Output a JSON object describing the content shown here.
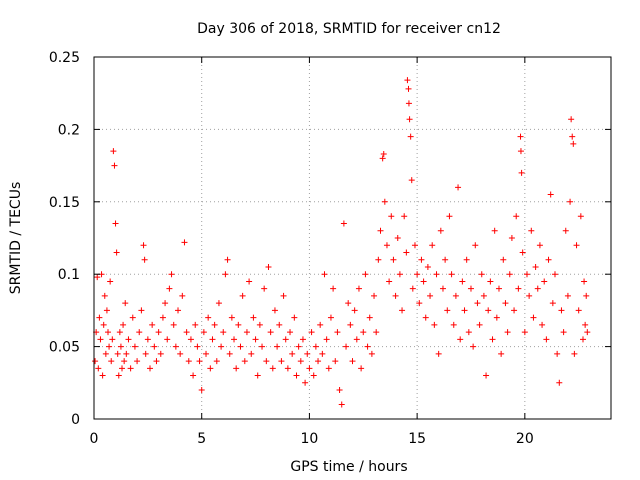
{
  "chart_data": {
    "type": "scatter",
    "title": "Day 306 of 2018, SRMTID for receiver cn12",
    "xlabel": "GPS time / hours",
    "ylabel": "SRMTID / TECUs",
    "xlim": [
      0,
      24
    ],
    "ylim": [
      0,
      0.25
    ],
    "xticks": [
      0,
      5,
      10,
      15,
      20
    ],
    "xtick_labels": [
      "0",
      "5",
      "10",
      "15",
      "20"
    ],
    "yticks": [
      0,
      0.05,
      0.1,
      0.15,
      0.2,
      0.25
    ],
    "ytick_labels": [
      "0",
      "0.05",
      "0.1",
      "0.15",
      "0.2",
      "0.25"
    ],
    "grid": true,
    "marker": "+",
    "series": [
      {
        "name": "SRMTID",
        "color": "#ff0000",
        "points": [
          [
            0.05,
            0.04
          ],
          [
            0.1,
            0.06
          ],
          [
            0.15,
            0.098
          ],
          [
            0.2,
            0.035
          ],
          [
            0.25,
            0.07
          ],
          [
            0.3,
            0.055
          ],
          [
            0.35,
            0.1
          ],
          [
            0.4,
            0.03
          ],
          [
            0.45,
            0.065
          ],
          [
            0.5,
            0.085
          ],
          [
            0.55,
            0.045
          ],
          [
            0.6,
            0.075
          ],
          [
            0.65,
            0.06
          ],
          [
            0.7,
            0.05
          ],
          [
            0.75,
            0.095
          ],
          [
            0.8,
            0.04
          ],
          [
            0.85,
            0.055
          ],
          [
            0.9,
            0.185
          ],
          [
            0.95,
            0.175
          ],
          [
            1.0,
            0.135
          ],
          [
            1.05,
            0.115
          ],
          [
            1.1,
            0.045
          ],
          [
            1.15,
            0.03
          ],
          [
            1.2,
            0.06
          ],
          [
            1.25,
            0.05
          ],
          [
            1.3,
            0.035
          ],
          [
            1.35,
            0.065
          ],
          [
            1.4,
            0.04
          ],
          [
            1.45,
            0.08
          ],
          [
            1.5,
            0.045
          ],
          [
            1.6,
            0.055
          ],
          [
            1.7,
            0.035
          ],
          [
            1.8,
            0.07
          ],
          [
            1.9,
            0.05
          ],
          [
            2.0,
            0.04
          ],
          [
            2.1,
            0.06
          ],
          [
            2.2,
            0.075
          ],
          [
            2.3,
            0.12
          ],
          [
            2.35,
            0.11
          ],
          [
            2.4,
            0.045
          ],
          [
            2.5,
            0.055
          ],
          [
            2.6,
            0.035
          ],
          [
            2.7,
            0.065
          ],
          [
            2.8,
            0.05
          ],
          [
            2.9,
            0.04
          ],
          [
            3.0,
            0.06
          ],
          [
            3.1,
            0.045
          ],
          [
            3.2,
            0.07
          ],
          [
            3.3,
            0.08
          ],
          [
            3.4,
            0.055
          ],
          [
            3.5,
            0.09
          ],
          [
            3.6,
            0.1
          ],
          [
            3.7,
            0.065
          ],
          [
            3.8,
            0.05
          ],
          [
            3.9,
            0.075
          ],
          [
            4.0,
            0.045
          ],
          [
            4.1,
            0.085
          ],
          [
            4.2,
            0.122
          ],
          [
            4.3,
            0.06
          ],
          [
            4.4,
            0.04
          ],
          [
            4.5,
            0.055
          ],
          [
            4.6,
            0.03
          ],
          [
            4.7,
            0.065
          ],
          [
            4.8,
            0.05
          ],
          [
            4.9,
            0.04
          ],
          [
            5.0,
            0.02
          ],
          [
            5.1,
            0.06
          ],
          [
            5.2,
            0.045
          ],
          [
            5.3,
            0.07
          ],
          [
            5.4,
            0.035
          ],
          [
            5.5,
            0.055
          ],
          [
            5.6,
            0.065
          ],
          [
            5.7,
            0.04
          ],
          [
            5.8,
            0.08
          ],
          [
            5.9,
            0.05
          ],
          [
            6.0,
            0.06
          ],
          [
            6.1,
            0.1
          ],
          [
            6.2,
            0.11
          ],
          [
            6.3,
            0.045
          ],
          [
            6.4,
            0.07
          ],
          [
            6.5,
            0.055
          ],
          [
            6.6,
            0.035
          ],
          [
            6.7,
            0.065
          ],
          [
            6.8,
            0.05
          ],
          [
            6.9,
            0.085
          ],
          [
            7.0,
            0.04
          ],
          [
            7.1,
            0.06
          ],
          [
            7.2,
            0.095
          ],
          [
            7.3,
            0.045
          ],
          [
            7.4,
            0.07
          ],
          [
            7.5,
            0.055
          ],
          [
            7.6,
            0.03
          ],
          [
            7.7,
            0.065
          ],
          [
            7.8,
            0.05
          ],
          [
            7.9,
            0.09
          ],
          [
            8.0,
            0.04
          ],
          [
            8.1,
            0.105
          ],
          [
            8.2,
            0.06
          ],
          [
            8.3,
            0.035
          ],
          [
            8.4,
            0.075
          ],
          [
            8.5,
            0.05
          ],
          [
            8.6,
            0.065
          ],
          [
            8.7,
            0.04
          ],
          [
            8.8,
            0.085
          ],
          [
            8.9,
            0.055
          ],
          [
            9.0,
            0.035
          ],
          [
            9.1,
            0.06
          ],
          [
            9.2,
            0.045
          ],
          [
            9.3,
            0.07
          ],
          [
            9.4,
            0.03
          ],
          [
            9.5,
            0.05
          ],
          [
            9.6,
            0.04
          ],
          [
            9.7,
            0.055
          ],
          [
            9.8,
            0.025
          ],
          [
            9.9,
            0.045
          ],
          [
            10.0,
            0.035
          ],
          [
            10.1,
            0.06
          ],
          [
            10.2,
            0.03
          ],
          [
            10.3,
            0.05
          ],
          [
            10.4,
            0.04
          ],
          [
            10.5,
            0.065
          ],
          [
            10.6,
            0.045
          ],
          [
            10.7,
            0.1
          ],
          [
            10.8,
            0.055
          ],
          [
            10.9,
            0.035
          ],
          [
            11.0,
            0.07
          ],
          [
            11.1,
            0.09
          ],
          [
            11.2,
            0.04
          ],
          [
            11.3,
            0.06
          ],
          [
            11.4,
            0.02
          ],
          [
            11.5,
            0.01
          ],
          [
            11.6,
            0.135
          ],
          [
            11.7,
            0.05
          ],
          [
            11.8,
            0.08
          ],
          [
            11.9,
            0.065
          ],
          [
            12.0,
            0.04
          ],
          [
            12.1,
            0.075
          ],
          [
            12.2,
            0.055
          ],
          [
            12.3,
            0.09
          ],
          [
            12.4,
            0.035
          ],
          [
            12.5,
            0.06
          ],
          [
            12.6,
            0.1
          ],
          [
            12.7,
            0.05
          ],
          [
            12.8,
            0.07
          ],
          [
            12.9,
            0.045
          ],
          [
            13.0,
            0.085
          ],
          [
            13.1,
            0.06
          ],
          [
            13.2,
            0.11
          ],
          [
            13.3,
            0.13
          ],
          [
            13.4,
            0.18
          ],
          [
            13.45,
            0.183
          ],
          [
            13.5,
            0.15
          ],
          [
            13.6,
            0.12
          ],
          [
            13.7,
            0.095
          ],
          [
            13.8,
            0.14
          ],
          [
            13.9,
            0.11
          ],
          [
            14.0,
            0.085
          ],
          [
            14.1,
            0.125
          ],
          [
            14.2,
            0.1
          ],
          [
            14.3,
            0.075
          ],
          [
            14.4,
            0.14
          ],
          [
            14.5,
            0.115
          ],
          [
            14.55,
            0.234
          ],
          [
            14.6,
            0.228
          ],
          [
            14.62,
            0.218
          ],
          [
            14.65,
            0.207
          ],
          [
            14.7,
            0.195
          ],
          [
            14.75,
            0.165
          ],
          [
            14.8,
            0.09
          ],
          [
            14.9,
            0.12
          ],
          [
            15.0,
            0.1
          ],
          [
            15.1,
            0.08
          ],
          [
            15.2,
            0.11
          ],
          [
            15.3,
            0.095
          ],
          [
            15.4,
            0.07
          ],
          [
            15.5,
            0.105
          ],
          [
            15.6,
            0.085
          ],
          [
            15.7,
            0.12
          ],
          [
            15.8,
            0.065
          ],
          [
            15.9,
            0.1
          ],
          [
            16.0,
            0.045
          ],
          [
            16.1,
            0.13
          ],
          [
            16.2,
            0.09
          ],
          [
            16.3,
            0.11
          ],
          [
            16.4,
            0.075
          ],
          [
            16.5,
            0.14
          ],
          [
            16.6,
            0.1
          ],
          [
            16.7,
            0.065
          ],
          [
            16.8,
            0.085
          ],
          [
            16.9,
            0.16
          ],
          [
            17.0,
            0.055
          ],
          [
            17.1,
            0.095
          ],
          [
            17.2,
            0.075
          ],
          [
            17.3,
            0.11
          ],
          [
            17.4,
            0.06
          ],
          [
            17.5,
            0.09
          ],
          [
            17.6,
            0.05
          ],
          [
            17.7,
            0.12
          ],
          [
            17.8,
            0.08
          ],
          [
            17.9,
            0.065
          ],
          [
            18.0,
            0.1
          ],
          [
            18.1,
            0.085
          ],
          [
            18.2,
            0.03
          ],
          [
            18.3,
            0.075
          ],
          [
            18.4,
            0.095
          ],
          [
            18.5,
            0.055
          ],
          [
            18.6,
            0.13
          ],
          [
            18.7,
            0.07
          ],
          [
            18.8,
            0.09
          ],
          [
            18.9,
            0.045
          ],
          [
            19.0,
            0.11
          ],
          [
            19.1,
            0.08
          ],
          [
            19.2,
            0.06
          ],
          [
            19.3,
            0.1
          ],
          [
            19.4,
            0.125
          ],
          [
            19.5,
            0.075
          ],
          [
            19.6,
            0.14
          ],
          [
            19.7,
            0.09
          ],
          [
            19.8,
            0.195
          ],
          [
            19.82,
            0.185
          ],
          [
            19.85,
            0.17
          ],
          [
            19.9,
            0.115
          ],
          [
            20.0,
            0.06
          ],
          [
            20.1,
            0.1
          ],
          [
            20.2,
            0.085
          ],
          [
            20.3,
            0.13
          ],
          [
            20.4,
            0.07
          ],
          [
            20.5,
            0.105
          ],
          [
            20.6,
            0.09
          ],
          [
            20.7,
            0.12
          ],
          [
            20.8,
            0.065
          ],
          [
            20.9,
            0.095
          ],
          [
            21.0,
            0.055
          ],
          [
            21.1,
            0.11
          ],
          [
            21.2,
            0.155
          ],
          [
            21.3,
            0.08
          ],
          [
            21.4,
            0.1
          ],
          [
            21.5,
            0.045
          ],
          [
            21.6,
            0.025
          ],
          [
            21.7,
            0.075
          ],
          [
            21.8,
            0.06
          ],
          [
            21.9,
            0.13
          ],
          [
            22.0,
            0.085
          ],
          [
            22.1,
            0.15
          ],
          [
            22.15,
            0.207
          ],
          [
            22.2,
            0.195
          ],
          [
            22.25,
            0.19
          ],
          [
            22.3,
            0.045
          ],
          [
            22.4,
            0.12
          ],
          [
            22.5,
            0.075
          ],
          [
            22.6,
            0.14
          ],
          [
            22.7,
            0.055
          ],
          [
            22.75,
            0.095
          ],
          [
            22.8,
            0.065
          ],
          [
            22.85,
            0.085
          ],
          [
            22.9,
            0.06
          ]
        ]
      }
    ]
  }
}
